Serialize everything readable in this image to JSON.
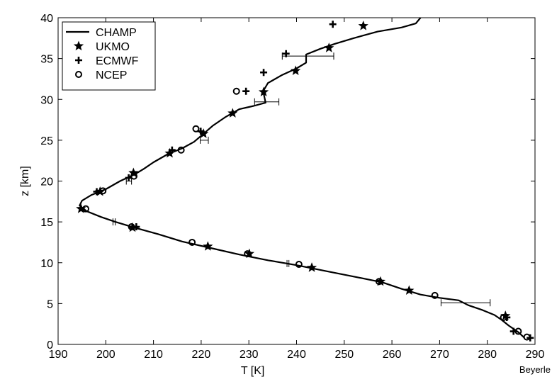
{
  "chart_data": {
    "type": "line",
    "xlabel": "T [K]",
    "ylabel": "z [km]",
    "xlim": [
      190,
      290
    ],
    "ylim": [
      0,
      40
    ],
    "xticks": [
      190,
      200,
      210,
      220,
      230,
      240,
      250,
      260,
      270,
      280,
      290
    ],
    "yticks": [
      0,
      5,
      10,
      15,
      20,
      25,
      30,
      35,
      40
    ],
    "legend_position": "top-left",
    "credit": "Beyerle",
    "series": [
      {
        "name": "CHAMP",
        "style": "line",
        "color": "#000000",
        "points": [
          [
            287.8,
            0.8
          ],
          [
            286.5,
            1.5
          ],
          [
            284.5,
            2.3
          ],
          [
            283.0,
            3.0
          ],
          [
            281.5,
            3.6
          ],
          [
            279.0,
            4.2
          ],
          [
            276.0,
            4.8
          ],
          [
            274.0,
            5.4
          ],
          [
            270.0,
            5.7
          ],
          [
            266.0,
            6.1
          ],
          [
            262.0,
            6.8
          ],
          [
            258.0,
            7.6
          ],
          [
            252.0,
            8.3
          ],
          [
            246.0,
            9.0
          ],
          [
            240.0,
            9.7
          ],
          [
            234.0,
            10.3
          ],
          [
            228.0,
            11.0
          ],
          [
            222.0,
            11.8
          ],
          [
            216.0,
            12.6
          ],
          [
            211.0,
            13.5
          ],
          [
            206.0,
            14.3
          ],
          [
            202.0,
            15.0
          ],
          [
            199.0,
            15.6
          ],
          [
            196.0,
            16.3
          ],
          [
            194.5,
            17.0
          ],
          [
            195.0,
            17.6
          ],
          [
            197.0,
            18.3
          ],
          [
            200.0,
            19.0
          ],
          [
            203.0,
            20.0
          ],
          [
            206.0,
            20.8
          ],
          [
            208.0,
            21.5
          ],
          [
            210.0,
            22.3
          ],
          [
            213.0,
            23.3
          ],
          [
            216.0,
            24.0
          ],
          [
            218.5,
            24.8
          ],
          [
            220.5,
            25.8
          ],
          [
            222.5,
            26.8
          ],
          [
            225.0,
            27.8
          ],
          [
            228.0,
            28.8
          ],
          [
            231.0,
            29.2
          ],
          [
            233.5,
            29.6
          ],
          [
            233.0,
            31.0
          ],
          [
            234.0,
            32.0
          ],
          [
            237.0,
            33.0
          ],
          [
            240.0,
            33.8
          ],
          [
            242.0,
            34.5
          ],
          [
            242.0,
            35.5
          ],
          [
            245.0,
            36.2
          ],
          [
            248.0,
            36.8
          ],
          [
            252.0,
            37.5
          ],
          [
            257.0,
            38.3
          ],
          [
            262.0,
            38.8
          ],
          [
            265.0,
            39.3
          ],
          [
            266.0,
            40.0
          ]
        ]
      },
      {
        "name": "UKMO",
        "style": "star",
        "points": [
          [
            194.8,
            16.6
          ],
          [
            198.8,
            18.7
          ],
          [
            205.8,
            21.0
          ],
          [
            213.4,
            23.4
          ],
          [
            220.5,
            25.8
          ],
          [
            226.6,
            28.3
          ],
          [
            233.1,
            30.9
          ],
          [
            239.8,
            33.5
          ],
          [
            246.8,
            36.3
          ],
          [
            254.0,
            39.0
          ],
          [
            205.6,
            14.3
          ],
          [
            221.4,
            12.0
          ],
          [
            230.1,
            11.1
          ],
          [
            243.2,
            9.4
          ],
          [
            257.6,
            7.7
          ],
          [
            263.6,
            6.6
          ],
          [
            283.8,
            3.5
          ]
        ]
      },
      {
        "name": "ECMWF",
        "style": "plus",
        "points": [
          [
            247.6,
            39.2
          ],
          [
            237.8,
            35.6
          ],
          [
            233.1,
            33.3
          ],
          [
            229.4,
            31.0
          ],
          [
            219.9,
            26.1
          ],
          [
            213.9,
            23.8
          ],
          [
            204.8,
            20.4
          ],
          [
            198.1,
            18.7
          ],
          [
            206.4,
            14.4
          ],
          [
            284.1,
            3.3
          ],
          [
            285.5,
            1.6
          ],
          [
            289.0,
            0.8
          ]
        ]
      },
      {
        "name": "NCEP",
        "style": "circle",
        "points": [
          [
            227.4,
            31.0
          ],
          [
            218.9,
            26.4
          ],
          [
            215.8,
            23.8
          ],
          [
            205.9,
            20.6
          ],
          [
            199.4,
            18.8
          ],
          [
            195.8,
            16.6
          ],
          [
            205.4,
            14.4
          ],
          [
            218.1,
            12.5
          ],
          [
            229.7,
            11.1
          ],
          [
            240.5,
            9.8
          ],
          [
            257.3,
            7.7
          ],
          [
            269.0,
            6.0
          ],
          [
            283.4,
            3.3
          ],
          [
            286.5,
            1.6
          ],
          [
            288.3,
            0.9
          ]
        ]
      }
    ],
    "error_bars": [
      {
        "y": 35.3,
        "x_min": 237.0,
        "x_max": 247.8
      },
      {
        "y": 29.7,
        "x_min": 231.2,
        "x_max": 236.3
      },
      {
        "y": 25.0,
        "x_min": 219.8,
        "x_max": 221.5
      },
      {
        "y": 20.0,
        "x_min": 204.3,
        "x_max": 205.4
      },
      {
        "y": 15.0,
        "x_min": 201.5,
        "x_max": 202.0
      },
      {
        "y": 9.9,
        "x_min": 238.0,
        "x_max": 238.4
      },
      {
        "y": 5.1,
        "x_min": 270.3,
        "x_max": 280.6
      }
    ]
  }
}
